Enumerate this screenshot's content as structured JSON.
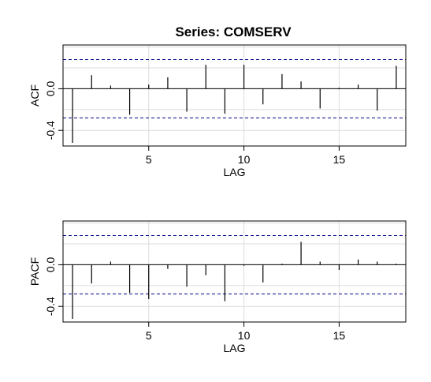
{
  "chart_data": [
    {
      "type": "bar",
      "title": "Series:  COMSERV",
      "xlabel": "LAG",
      "ylabel": "ACF",
      "xlim": [
        0.5,
        18.5
      ],
      "ylim": [
        -0.55,
        0.42
      ],
      "x_ticks": [
        5,
        10,
        15
      ],
      "y_ticks": [
        {
          "value": -0.4,
          "label": "-0.4"
        },
        {
          "value": 0.0,
          "label": "0.0"
        }
      ],
      "grid": true,
      "confidence_band": [
        -0.28,
        0.28
      ],
      "lags": [
        1,
        2,
        3,
        4,
        5,
        6,
        7,
        8,
        9,
        10,
        11,
        12,
        13,
        14,
        15,
        16,
        17,
        18
      ],
      "values": [
        -0.52,
        0.13,
        0.03,
        -0.25,
        0.04,
        0.11,
        -0.22,
        0.23,
        -0.24,
        0.23,
        -0.15,
        0.14,
        0.07,
        -0.19,
        0.01,
        0.04,
        -0.21,
        0.22
      ]
    },
    {
      "type": "bar",
      "title": "",
      "xlabel": "LAG",
      "ylabel": "PACF",
      "xlim": [
        0.5,
        18.5
      ],
      "ylim": [
        -0.55,
        0.42
      ],
      "x_ticks": [
        5,
        10,
        15
      ],
      "y_ticks": [
        {
          "value": -0.4,
          "label": "-0.4"
        },
        {
          "value": 0.0,
          "label": "0.0"
        }
      ],
      "grid": true,
      "confidence_band": [
        -0.28,
        0.28
      ],
      "lags": [
        1,
        2,
        3,
        4,
        5,
        6,
        7,
        8,
        9,
        10,
        11,
        12,
        13,
        14,
        15,
        16,
        17,
        18
      ],
      "values": [
        -0.52,
        -0.18,
        0.03,
        -0.27,
        -0.33,
        -0.04,
        -0.21,
        -0.1,
        -0.35,
        -0.01,
        -0.17,
        0.01,
        0.22,
        0.03,
        -0.05,
        0.05,
        0.03,
        0.01
      ]
    }
  ]
}
